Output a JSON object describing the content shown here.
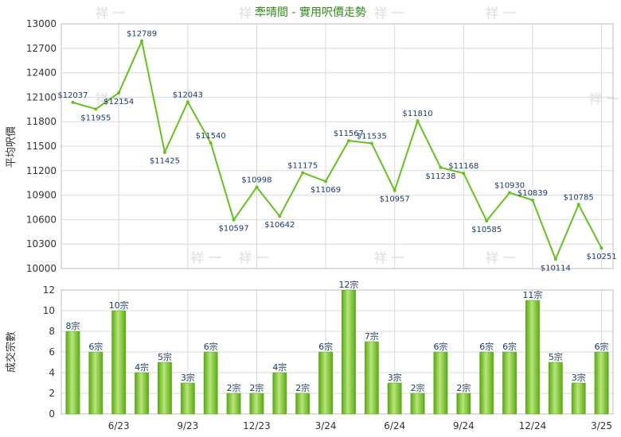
{
  "chart_data": [
    {
      "type": "line",
      "title": "牽晴間 - 實用呎價走勢",
      "ylabel": "平均呎價",
      "ylim": [
        10000,
        13000
      ],
      "yticks": [
        10000,
        10300,
        10600,
        10900,
        11200,
        11500,
        11800,
        12100,
        12400,
        12700,
        13000
      ],
      "x_labels": [
        "6/23",
        "9/23",
        "12/23",
        "3/24",
        "6/24",
        "9/24",
        "12/24",
        "3/25"
      ],
      "x_label_index": [
        2,
        5,
        8,
        11,
        14,
        17,
        20,
        23
      ],
      "grid": true,
      "values": [
        12037,
        11955,
        12154,
        12789,
        11425,
        12043,
        11540,
        10597,
        10998,
        10642,
        11175,
        11069,
        11567,
        11535,
        10957,
        11810,
        11238,
        11168,
        10585,
        10930,
        10839,
        10114,
        10785,
        10251
      ],
      "value_labels": [
        "$12037",
        "$11955",
        "$12154",
        "$12789",
        "$11425",
        "$12043",
        "$11540",
        "$10597",
        "$10998",
        "$10642",
        "$11175",
        "$11069",
        "$11567",
        "$11535",
        "$10957",
        "$11810",
        "$11238",
        "$11168",
        "$10585",
        "$10930",
        "$10839",
        "$10114",
        "$10785",
        "$10251"
      ],
      "color": "#66c020"
    },
    {
      "type": "bar",
      "ylabel": "成交宗數",
      "ylim": [
        0,
        12
      ],
      "yticks": [
        0,
        2,
        4,
        6,
        8,
        10,
        12
      ],
      "x_labels": [
        "6/23",
        "9/23",
        "12/23",
        "3/24",
        "6/24",
        "9/24",
        "12/24",
        "3/25"
      ],
      "x_label_index": [
        2,
        5,
        8,
        11,
        14,
        17,
        20,
        23
      ],
      "grid": true,
      "values": [
        8,
        6,
        10,
        4,
        5,
        3,
        6,
        2,
        2,
        4,
        2,
        6,
        12,
        7,
        3,
        2,
        6,
        2,
        6,
        6,
        11,
        5,
        3,
        6
      ],
      "value_labels": [
        "8宗",
        "6宗",
        "10宗",
        "4宗",
        "5宗",
        "3宗",
        "6宗",
        "2宗",
        "2宗",
        "4宗",
        "2宗",
        "6宗",
        "12宗",
        "7宗",
        "3宗",
        "2宗",
        "6宗",
        "2宗",
        "6宗",
        "6宗",
        "11宗",
        "5宗",
        "3宗",
        "6宗"
      ],
      "color": "#7cc832"
    }
  ],
  "watermark": "祥 一",
  "colors": {
    "line": "#66c020",
    "bar_light": "#b8e67a",
    "bar_dark": "#5aa814",
    "title": "#2e8b1a"
  }
}
